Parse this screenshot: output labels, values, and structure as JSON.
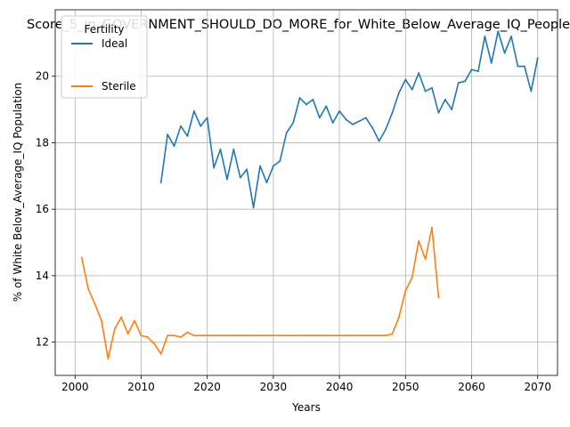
{
  "chart_data": {
    "type": "line",
    "title": "Score_5_in_GOVERNMENT_SHOULD_DO_MORE_for_White_Below_Average_IQ_People",
    "xlabel": "Years",
    "ylabel": "% of White Below_Average_IQ Population",
    "xlim": [
      1997,
      2073
    ],
    "ylim": [
      11.0,
      22.0
    ],
    "x_ticks": [
      2000,
      2010,
      2020,
      2030,
      2040,
      2050,
      2060,
      2070
    ],
    "y_ticks": [
      12,
      14,
      16,
      18,
      20
    ],
    "grid": true,
    "legend": {
      "title": "Fertility",
      "placement": "upper-left"
    },
    "series": [
      {
        "name": "Ideal",
        "color": "#1f77b4",
        "x": [
          2013,
          2014,
          2015,
          2016,
          2017,
          2018,
          2019,
          2020,
          2021,
          2022,
          2023,
          2024,
          2025,
          2026,
          2027,
          2028,
          2029,
          2030,
          2031,
          2032,
          2033,
          2034,
          2035,
          2036,
          2037,
          2038,
          2039,
          2040,
          2041,
          2042,
          2043,
          2044,
          2045,
          2046,
          2047,
          2048,
          2049,
          2050,
          2051,
          2052,
          2053,
          2054,
          2055,
          2056,
          2057,
          2058,
          2059,
          2060,
          2061,
          2062,
          2063,
          2064,
          2065,
          2066,
          2067,
          2068,
          2069,
          2070
        ],
        "values": [
          16.8,
          18.25,
          17.9,
          18.5,
          18.2,
          18.95,
          18.5,
          18.75,
          17.25,
          17.8,
          16.9,
          17.8,
          16.95,
          17.2,
          16.05,
          17.3,
          16.8,
          17.3,
          17.45,
          18.3,
          18.6,
          19.35,
          19.15,
          19.3,
          18.75,
          19.1,
          18.6,
          18.95,
          18.7,
          18.55,
          18.65,
          18.75,
          18.45,
          18.05,
          18.4,
          18.9,
          19.5,
          19.9,
          19.6,
          20.1,
          19.55,
          19.65,
          18.9,
          19.3,
          19.0,
          19.8,
          19.85,
          20.2,
          20.15,
          21.2,
          20.4,
          21.35,
          20.7,
          21.2,
          20.3,
          20.3,
          19.55,
          20.55
        ]
      },
      {
        "name": "Sterile",
        "color": "#ff7f0e",
        "x": [
          2001,
          2002,
          2003,
          2004,
          2005,
          2006,
          2007,
          2008,
          2009,
          2010,
          2011,
          2012,
          2013,
          2014,
          2015,
          2016,
          2017,
          2018,
          2019,
          2020,
          2021,
          2022,
          2023,
          2024,
          2025,
          2026,
          2027,
          2028,
          2029,
          2030,
          2031,
          2032,
          2033,
          2034,
          2035,
          2036,
          2037,
          2038,
          2039,
          2040,
          2041,
          2042,
          2043,
          2044,
          2045,
          2046,
          2047,
          2048,
          2049,
          2050,
          2051,
          2052,
          2053,
          2054,
          2055
        ],
        "values": [
          14.55,
          13.6,
          13.15,
          12.65,
          11.5,
          12.4,
          12.75,
          12.25,
          12.65,
          12.2,
          12.15,
          11.95,
          11.65,
          12.2,
          12.2,
          12.15,
          12.3,
          12.2,
          12.2,
          12.2,
          12.2,
          12.2,
          12.2,
          12.2,
          12.2,
          12.2,
          12.2,
          12.2,
          12.2,
          12.2,
          12.2,
          12.2,
          12.2,
          12.2,
          12.2,
          12.2,
          12.2,
          12.2,
          12.2,
          12.2,
          12.2,
          12.2,
          12.2,
          12.2,
          12.2,
          12.2,
          12.2,
          12.25,
          12.75,
          13.55,
          13.95,
          15.05,
          14.5,
          15.45,
          13.35
        ]
      }
    ]
  }
}
